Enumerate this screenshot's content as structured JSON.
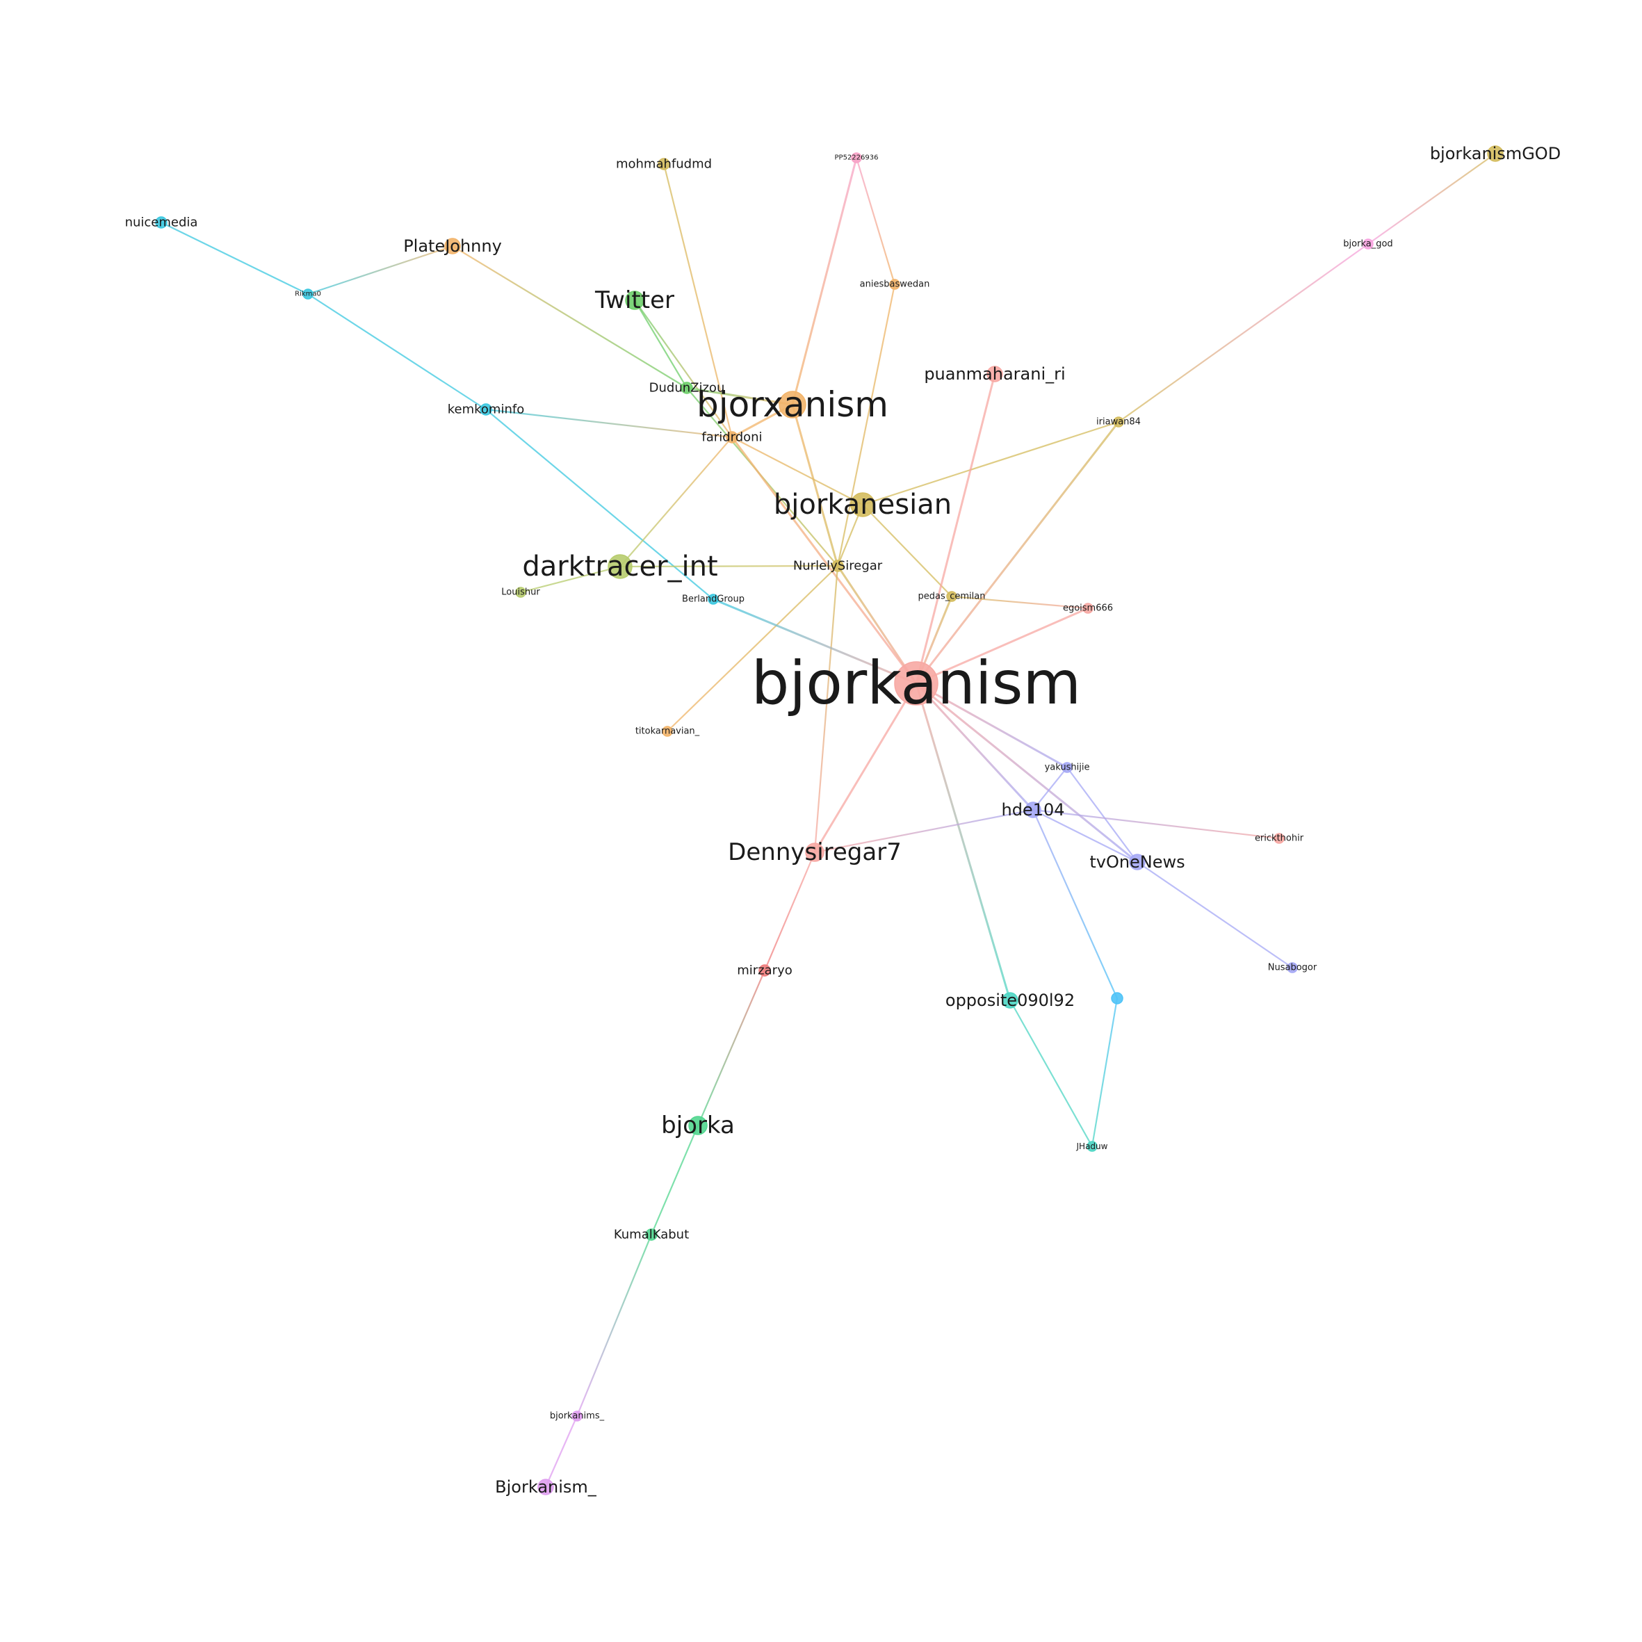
{
  "graph": {
    "nodes": [
      {
        "id": "bjorkanism",
        "label": "bjorkanism",
        "color": "#f7a8a3",
        "weight": 10
      },
      {
        "id": "bjorxanism",
        "label": "bjorxanism",
        "color": "#f2b46a",
        "weight": 6
      },
      {
        "id": "bjorkanesian",
        "label": "bjorkanesian",
        "color": "#d4bc5e",
        "weight": 5
      },
      {
        "id": "darktracer_int",
        "label": "darktracer_int",
        "color": "#b7cc6e",
        "weight": 5
      },
      {
        "id": "Twitter",
        "label": "Twitter",
        "color": "#6fcf6b",
        "weight": 4
      },
      {
        "id": "Dennysiregar7",
        "label": "Dennysiregar7",
        "color": "#f7a8a3",
        "weight": 4
      },
      {
        "id": "bjorka",
        "label": "bjorka",
        "color": "#52d68f",
        "weight": 4
      },
      {
        "id": "Bjorkanism_",
        "label": "Bjorkanism_",
        "color": "#df9ef0",
        "weight": 3
      },
      {
        "id": "bjorkanismGOD",
        "label": "bjorkanismGOD",
        "color": "#d4bc5e",
        "weight": 3
      },
      {
        "id": "puanmaharani_ri",
        "label": "puanmaharani_ri",
        "color": "#f7a8a3",
        "weight": 3
      },
      {
        "id": "hde104",
        "label": "hde104",
        "color": "#a5a8f5",
        "weight": 3
      },
      {
        "id": "tvOneNews",
        "label": "tvOneNews",
        "color": "#a5a8f5",
        "weight": 3
      },
      {
        "id": "opposite090l92",
        "label": "opposite090l92",
        "color": "#4fd6c4",
        "weight": 3
      },
      {
        "id": "PlateJohnny",
        "label": "PlateJohnny",
        "color": "#f2b46a",
        "weight": 3
      },
      {
        "id": "mohmahfudmd",
        "label": "mohmahfudmd",
        "color": "#d4bc5e",
        "weight": 2
      },
      {
        "id": "nuicemedia",
        "label": "nuicemedia",
        "color": "#3cc8e0",
        "weight": 2
      },
      {
        "id": "kemkominfo",
        "label": "kemkominfo",
        "color": "#3cc8e0",
        "weight": 2
      },
      {
        "id": "DudunZizou",
        "label": "DudunZizou",
        "color": "#6fcf6b",
        "weight": 2
      },
      {
        "id": "faridrdoni",
        "label": "faridrdoni",
        "color": "#f2b46a",
        "weight": 2
      },
      {
        "id": "NurlelySiregar",
        "label": "NurlelySiregar",
        "color": "#d4bc5e",
        "weight": 2
      },
      {
        "id": "mirzaryo",
        "label": "mirzaryo",
        "color": "#f07d7d",
        "weight": 2
      },
      {
        "id": "KumalKabut",
        "label": "KumalKabut",
        "color": "#52d68f",
        "weight": 2
      },
      {
        "id": "Rikma0",
        "label": "Rikma0",
        "color": "#3cc8e0",
        "weight": 1
      },
      {
        "id": "PP52226936",
        "label": "PP52226936",
        "color": "#f7a3c7",
        "weight": 1
      },
      {
        "id": "aniesbaswedan",
        "label": "aniesbaswedan",
        "color": "#f2b46a",
        "weight": 1
      },
      {
        "id": "bjorka_god",
        "label": "bjorka_god",
        "color": "#f7a3e0",
        "weight": 1
      },
      {
        "id": "iriawan84",
        "label": "iriawan84",
        "color": "#d4bc5e",
        "weight": 1
      },
      {
        "id": "Louishur",
        "label": "Louishur",
        "color": "#b7cc6e",
        "weight": 1
      },
      {
        "id": "BerlandGroup",
        "label": "BerlandGroup",
        "color": "#3cc8e0",
        "weight": 1
      },
      {
        "id": "pedas_cemilan",
        "label": "pedas_cemilan",
        "color": "#d4bc5e",
        "weight": 1
      },
      {
        "id": "egoism666",
        "label": "egoism666",
        "color": "#f7a8a3",
        "weight": 1
      },
      {
        "id": "titokarnavian_",
        "label": "titokarnavian_",
        "color": "#f2b46a",
        "weight": 1
      },
      {
        "id": "yakushijie",
        "label": "yakushijie",
        "color": "#a5a8f5",
        "weight": 1
      },
      {
        "id": "erickthohir",
        "label": "erickthohir",
        "color": "#f7a8a3",
        "weight": 1
      },
      {
        "id": "Nusabogor",
        "label": "Nusabogor",
        "color": "#a5a8f5",
        "weight": 1
      },
      {
        "id": "unlabeled",
        "label": "",
        "color": "#4fc3f7",
        "weight": 2
      },
      {
        "id": "JHaduw",
        "label": "JHaduw",
        "color": "#4fd6c4",
        "weight": 1
      },
      {
        "id": "bjorkanims_",
        "label": "bjorkanims_",
        "color": "#df9ef0",
        "weight": 1
      }
    ],
    "edges": [
      [
        "nuicemedia",
        "Rikma0"
      ],
      [
        "Rikma0",
        "kemkominfo"
      ],
      [
        "Rikma0",
        "PlateJohnny"
      ],
      [
        "PlateJohnny",
        "DudunZizou"
      ],
      [
        "kemkominfo",
        "BerlandGroup"
      ],
      [
        "kemkominfo",
        "faridrdoni"
      ],
      [
        "mohmahfudmd",
        "faridrdoni"
      ],
      [
        "Twitter",
        "DudunZizou"
      ],
      [
        "Twitter",
        "faridrdoni"
      ],
      [
        "DudunZizou",
        "bjorxanism"
      ],
      [
        "DudunZizou",
        "NurlelySiregar"
      ],
      [
        "PP52226936",
        "aniesbaswedan"
      ],
      [
        "PP52226936",
        "bjorxanism"
      ],
      [
        "aniesbaswedan",
        "NurlelySiregar"
      ],
      [
        "bjorxanism",
        "faridrdoni"
      ],
      [
        "bjorxanism",
        "NurlelySiregar"
      ],
      [
        "faridrdoni",
        "bjorkanesian"
      ],
      [
        "faridrdoni",
        "darktracer_int"
      ],
      [
        "faridrdoni",
        "bjorkanism"
      ],
      [
        "bjorkanesian",
        "NurlelySiregar"
      ],
      [
        "bjorkanesian",
        "iriawan84"
      ],
      [
        "bjorkanesian",
        "pedas_cemilan"
      ],
      [
        "darktracer_int",
        "NurlelySiregar"
      ],
      [
        "darktracer_int",
        "Louishur"
      ],
      [
        "NurlelySiregar",
        "bjorkanism"
      ],
      [
        "NurlelySiregar",
        "Dennysiregar7"
      ],
      [
        "NurlelySiregar",
        "titokarnavian_"
      ],
      [
        "puanmaharani_ri",
        "bjorkanism"
      ],
      [
        "bjorkanismGOD",
        "bjorka_god"
      ],
      [
        "bjorka_god",
        "iriawan84"
      ],
      [
        "iriawan84",
        "bjorkanism"
      ],
      [
        "BerlandGroup",
        "bjorkanism"
      ],
      [
        "pedas_cemilan",
        "bjorkanism"
      ],
      [
        "pedas_cemilan",
        "egoism666"
      ],
      [
        "egoism666",
        "bjorkanism"
      ],
      [
        "bjorkanism",
        "yakushijie"
      ],
      [
        "bjorkanism",
        "hde104"
      ],
      [
        "bjorkanism",
        "tvOneNews"
      ],
      [
        "bjorkanism",
        "Dennysiregar7"
      ],
      [
        "bjorkanism",
        "opposite090l92"
      ],
      [
        "yakushijie",
        "hde104"
      ],
      [
        "yakushijie",
        "tvOneNews"
      ],
      [
        "hde104",
        "tvOneNews"
      ],
      [
        "hde104",
        "erickthohir"
      ],
      [
        "hde104",
        "Dennysiregar7"
      ],
      [
        "hde104",
        "unlabeled"
      ],
      [
        "tvOneNews",
        "Nusabogor"
      ],
      [
        "unlabeled",
        "JHaduw"
      ],
      [
        "opposite090l92",
        "JHaduw"
      ],
      [
        "Dennysiregar7",
        "mirzaryo"
      ],
      [
        "mirzaryo",
        "bjorka"
      ],
      [
        "bjorka",
        "KumalKabut"
      ],
      [
        "KumalKabut",
        "bjorkanims_"
      ],
      [
        "bjorkanims_",
        "Bjorkanism_"
      ]
    ]
  }
}
